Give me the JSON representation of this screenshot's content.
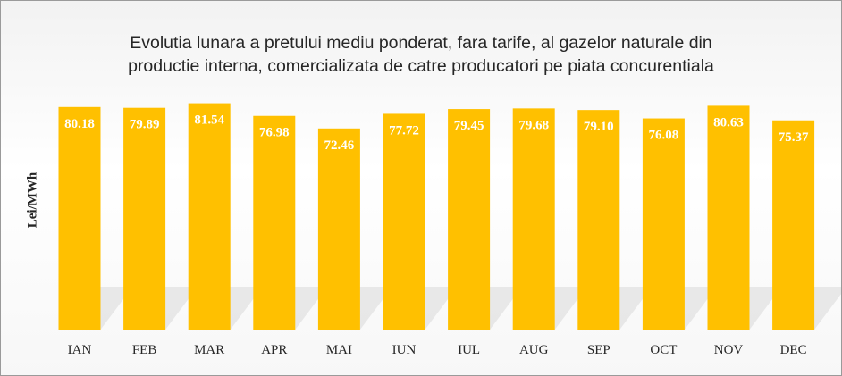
{
  "chart_data": {
    "type": "bar",
    "title": "Evolutia lunara a pretului mediu ponderat, fara tarife, al gazelor naturale din\nproductie interna, comercializata  de catre producatori pe piata concurentiala",
    "xlabel": "",
    "ylabel": "Lei/MWh",
    "categories": [
      "IAN",
      "FEB",
      "MAR",
      "APR",
      "MAI",
      "IUN",
      "IUL",
      "AUG",
      "SEP",
      "OCT",
      "NOV",
      "DEC"
    ],
    "values": [
      80.18,
      79.89,
      81.54,
      76.98,
      72.46,
      77.72,
      79.45,
      79.68,
      79.1,
      76.08,
      80.63,
      75.37
    ],
    "value_labels": [
      "80.18",
      "79.89",
      "81.54",
      "76.98",
      "72.46",
      "77.72",
      "79.45",
      "79.68",
      "79.10",
      "76.08",
      "80.63",
      "75.37"
    ],
    "grid": false,
    "legend": "none",
    "colors": {
      "bar": "#ffc000",
      "label": "#ffffff",
      "text": "#262626"
    }
  }
}
